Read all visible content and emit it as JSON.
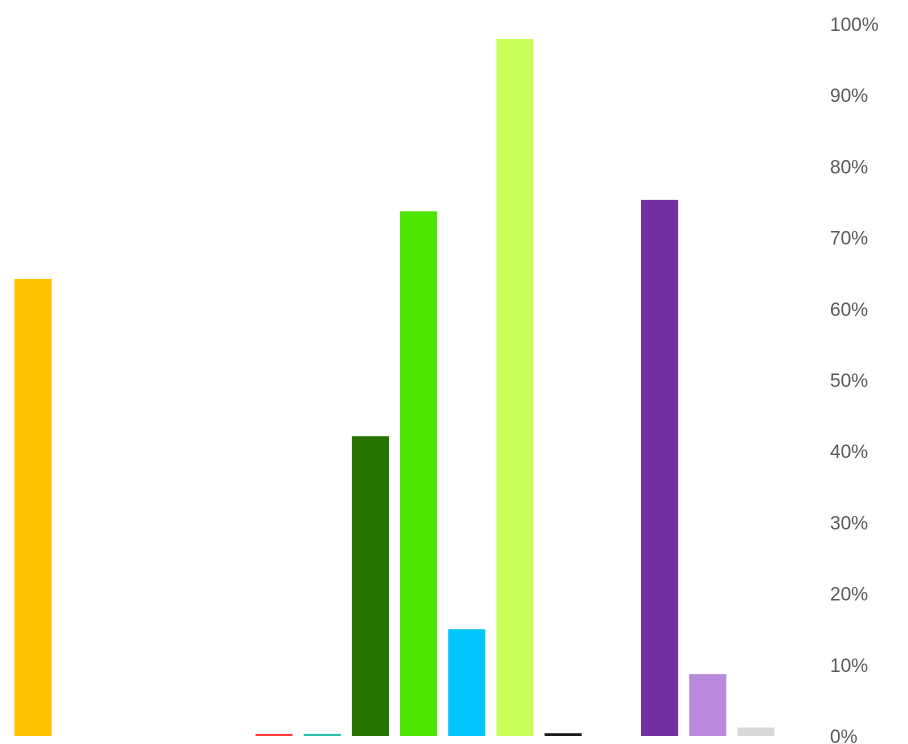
{
  "chart_data": {
    "type": "bar",
    "title": "",
    "xlabel": "",
    "ylabel": "",
    "ylim": [
      0,
      100
    ],
    "y_axis_position": "right",
    "y_ticks": [
      0,
      10,
      20,
      30,
      40,
      50,
      60,
      70,
      80,
      90,
      100
    ],
    "y_tick_labels": [
      "0%",
      "10%",
      "20%",
      "30%",
      "40%",
      "50%",
      "60%",
      "70%",
      "80%",
      "90%",
      "100%"
    ],
    "grid": false,
    "legend": "none",
    "bars": [
      {
        "value": 64.2,
        "color": "#FFC000"
      },
      {
        "value": 0,
        "color": "#FFFFFF"
      },
      {
        "value": 0,
        "color": "#FFFFFF"
      },
      {
        "value": 0,
        "color": "#FFFFFF"
      },
      {
        "value": 0,
        "color": "#FFFFFF"
      },
      {
        "value": 0.3,
        "color": "#FF3B3B"
      },
      {
        "value": 0.3,
        "color": "#2BBFB0"
      },
      {
        "value": 42.1,
        "color": "#267300"
      },
      {
        "value": 73.7,
        "color": "#4CE600"
      },
      {
        "value": 15.0,
        "color": "#00C5FF"
      },
      {
        "value": 97.9,
        "color": "#C8FF5A"
      },
      {
        "value": 0.4,
        "color": "#1A1A1A"
      },
      {
        "value": 0,
        "color": "#FFFFFF"
      },
      {
        "value": 75.3,
        "color": "#7030A0"
      },
      {
        "value": 8.7,
        "color": "#B98ADB"
      },
      {
        "value": 1.2,
        "color": "#D9D9D9"
      }
    ]
  }
}
